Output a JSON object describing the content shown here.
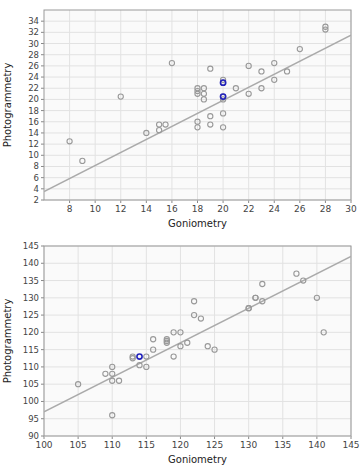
{
  "chart_data": [
    {
      "type": "scatter",
      "xlabel": "Goniometry",
      "ylabel": "Photogrammetry",
      "xlim": [
        6,
        30
      ],
      "ylim": [
        2,
        36
      ],
      "xticks": [
        8,
        10,
        12,
        14,
        16,
        18,
        20,
        22,
        24,
        26,
        28,
        30
      ],
      "yticks": [
        2,
        4,
        6,
        8,
        10,
        12,
        14,
        16,
        18,
        20,
        22,
        24,
        26,
        28,
        30,
        32,
        34
      ],
      "grid": true,
      "series": [
        {
          "type": "line",
          "color": "#aaaaaa",
          "x": [
            6,
            30
          ],
          "values": [
            3.5,
            31.5
          ]
        },
        {
          "type": "scatter",
          "color": "#999999",
          "marker": "circle",
          "x": [
            8,
            9,
            12,
            14,
            15,
            15,
            15.5,
            16,
            18,
            18,
            18,
            18,
            18,
            18.5,
            18.5,
            18.5,
            19,
            19,
            19,
            20,
            20,
            20,
            20,
            20,
            20,
            21,
            22,
            22,
            23,
            23,
            24,
            24,
            25,
            26,
            28,
            28
          ],
          "values": [
            12.5,
            9,
            20.5,
            14,
            14.5,
            15.5,
            15.5,
            26.5,
            21,
            21.5,
            22,
            16,
            15,
            21,
            22,
            20,
            25.5,
            17,
            15.5,
            23,
            23.5,
            20,
            20.5,
            17.5,
            15,
            22,
            21,
            26,
            25,
            22,
            23.5,
            26.5,
            25,
            29,
            33,
            32.5
          ]
        },
        {
          "type": "scatter",
          "color": "#2222bb",
          "marker": "circle",
          "x": [
            20,
            20
          ],
          "values": [
            23,
            20.5
          ]
        }
      ]
    },
    {
      "type": "scatter",
      "xlabel": "Goniometry",
      "ylabel": "Photogrammetry",
      "xlim": [
        100,
        145
      ],
      "ylim": [
        90,
        145
      ],
      "xticks": [
        100,
        105,
        110,
        115,
        120,
        125,
        130,
        135,
        140,
        145
      ],
      "yticks": [
        90,
        95,
        100,
        105,
        110,
        115,
        120,
        125,
        130,
        135,
        140,
        145
      ],
      "grid": true,
      "series": [
        {
          "type": "line",
          "color": "#aaaaaa",
          "x": [
            100,
            145
          ],
          "values": [
            97,
            142
          ]
        },
        {
          "type": "scatter",
          "color": "#999999",
          "marker": "circle",
          "x": [
            105,
            109,
            110,
            110,
            110,
            110,
            111,
            113,
            113,
            114,
            115,
            115,
            116,
            116,
            118,
            118,
            118,
            119,
            119,
            120,
            120,
            121,
            122,
            122,
            123,
            124,
            125,
            130,
            130,
            131,
            131,
            132,
            132,
            137,
            138,
            140,
            141
          ],
          "values": [
            105,
            108,
            108,
            106,
            96,
            110,
            106,
            113,
            112.5,
            110.5,
            113,
            110,
            118,
            115,
            118,
            117,
            117.5,
            120,
            113,
            120,
            116,
            117,
            129,
            125,
            124,
            116,
            115,
            127,
            127,
            130,
            130,
            129,
            134,
            137,
            135,
            130,
            120
          ]
        },
        {
          "type": "scatter",
          "color": "#2222bb",
          "marker": "circle",
          "x": [
            114
          ],
          "values": [
            113
          ]
        }
      ]
    }
  ]
}
